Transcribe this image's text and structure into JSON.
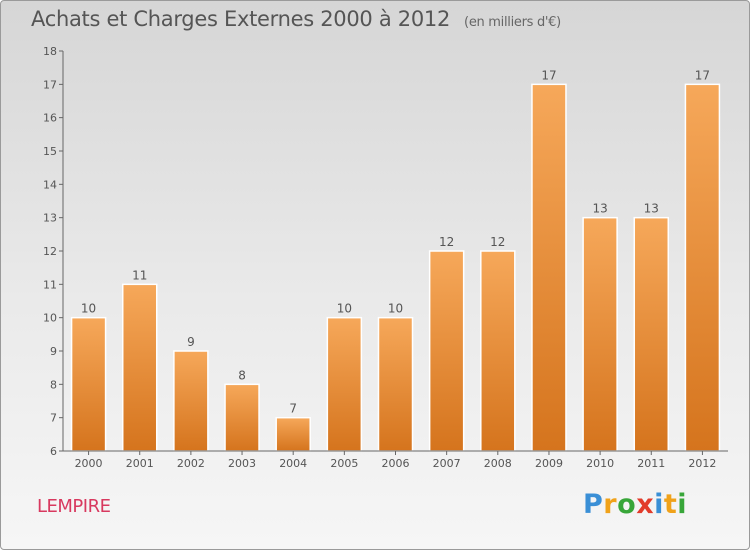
{
  "title": "Achats et Charges Externes 2000 à 2012",
  "unit": "(en milliers d'€)",
  "commune": "LEMPIRE",
  "logo": {
    "letters": [
      "P",
      "r",
      "o",
      "x",
      "i",
      "t",
      "i"
    ],
    "colors": [
      "#3a8fd6",
      "#f0a21a",
      "#38a639",
      "#e23b2a",
      "#3a8fd6",
      "#f0a21a",
      "#38a639"
    ]
  },
  "colors": {
    "bar_top": "#f6a85a",
    "bar_bottom": "#d5741d",
    "text": "#555555"
  },
  "chart_data": {
    "type": "bar",
    "categories": [
      "2000",
      "2001",
      "2002",
      "2003",
      "2004",
      "2005",
      "2006",
      "2007",
      "2008",
      "2009",
      "2010",
      "2011",
      "2012"
    ],
    "values": [
      10,
      11,
      9,
      8,
      7,
      10,
      10,
      12,
      12,
      17,
      13,
      13,
      17
    ],
    "data_labels": [
      "10",
      "11",
      "9",
      "8",
      "7",
      "10",
      "10",
      "12",
      "12",
      "17",
      "13",
      "13",
      "17"
    ],
    "y_ticks": [
      "6",
      "7",
      "8",
      "9",
      "10",
      "11",
      "12",
      "13",
      "14",
      "15",
      "16",
      "17",
      "18"
    ],
    "ylim": [
      6,
      18
    ],
    "grid": false,
    "legend": "none"
  }
}
